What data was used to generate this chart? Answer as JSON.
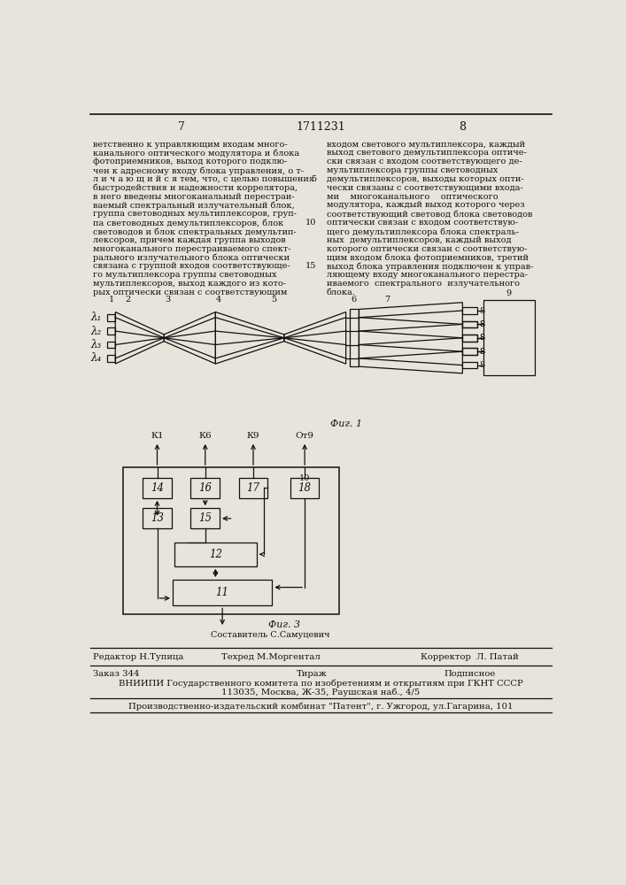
{
  "page_number_left": "7",
  "patent_number": "1711231",
  "page_number_right": "8",
  "bg_color": "#e8e4dc",
  "text_color": "#111111",
  "left_column_lines": [
    "ветственно к управляющим входам много-",
    "канального оптического модулятора и блока",
    "фотоприемников, выход которого подклю-",
    "чен к адресному входу блока управления, о т-",
    "л и ч а ю щ и й с я тем, что, с целью повышения",
    "быстродействия и надежности коррелятора,",
    "в него введены многоканальный перестраи-",
    "ваемый спектральный излучательный блок,",
    "группа световодных мультиплексоров, груп-",
    "па световодных демультиплексоров, блок",
    "световодов и блок спектральных демультип-",
    "лексоров, причем каждая группа выходов",
    "многоканального перестраиваемого спект-",
    "рального излучательного блока оптически",
    "связана с группой входов соответствующе-",
    "го мультиплексора группы световодных",
    "мультиплексоров, выход каждого из кото-",
    "рых оптически связан с соответствующим"
  ],
  "right_column_lines": [
    "входом светового мультиплексора, каждый",
    "выход светового демультиплексора оптиче-",
    "ски связан с входом соответствующего де-",
    "мультиплексора группы световодных",
    "демультиплексоров, выходы которых опти-",
    "чески связаны с соответствующими входа-",
    "ми    многоканального    оптического",
    "модулятора, каждый выход которого через",
    "соответствующий световод блока световодов",
    "оптически связан с входом соответствую-",
    "щего демультиплексора блока спектраль-",
    "ных  демультиплексоров, каждый выход",
    "которого оптически связан с соответствую-",
    "щим входом блока фотоприемников, третий",
    "выход блока управления подключен к управ-",
    "ляющему входу многоканального перестра-",
    "иваемого  спектрального  излучательного",
    "блока."
  ],
  "margin_numbers": {
    "5": 4,
    "10": 9,
    "15": 14
  },
  "fig1_label": "Фиг. 1",
  "fig3_label": "Фиг. 3",
  "fig3_author": "Составитель С.Самуцевич",
  "editor_line": "Редактор Н.Тупица",
  "techred_line": "Техред М.Моргентал",
  "corrector_line": "Корректор  Л. Патай",
  "order_line": "Заказ 344",
  "tirage_line": "Тираж",
  "subscription_line": "Подписное",
  "vniiipi_line": "ВНИИПИ Государственного комитета по изобретениям и открытиям при ГКНТ СССР",
  "address_line": "113035, Москва, Ж-35, Раушская наб., 4/5",
  "production_line": "Производственно-издательский комбинат \"Патент\", г. Ужгород, ул.Гагарина, 101"
}
